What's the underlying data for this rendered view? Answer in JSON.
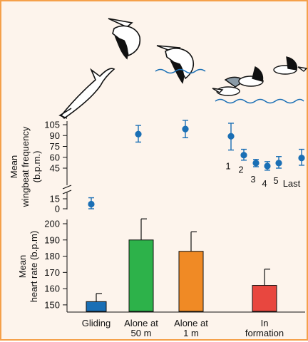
{
  "chart_data": [
    {
      "type": "scatter",
      "ylabel_line1": "Mean",
      "ylabel_line2": "wingbeat frequency",
      "ylabel_line3": "(b.p.m.)",
      "y_ticks": [
        0,
        15,
        45,
        60,
        75,
        90,
        105
      ],
      "axis_break_between": [
        15,
        45
      ],
      "ylim": [
        -5,
        110
      ],
      "points": [
        {
          "value": 7,
          "err_low": 0,
          "err_high": 16,
          "label": ""
        },
        {
          "value": 92,
          "err_low": 81,
          "err_high": 104,
          "label": ""
        },
        {
          "value": 99,
          "err_low": 87,
          "err_high": 111,
          "label": ""
        },
        {
          "value": 89,
          "err_low": 70,
          "err_high": 107,
          "label": "1"
        },
        {
          "value": 63,
          "err_low": 56,
          "err_high": 71,
          "label": "2"
        },
        {
          "value": 52,
          "err_low": 47,
          "err_high": 57,
          "label": "3"
        },
        {
          "value": 48,
          "err_low": 43,
          "err_high": 54,
          "label": "4"
        },
        {
          "value": 52,
          "err_low": 45,
          "err_high": 61,
          "label": "5"
        },
        {
          "value": 59,
          "err_low": 49,
          "err_high": 71,
          "label": "Last"
        }
      ],
      "marker_color": "#1a6fb5",
      "grid": false
    },
    {
      "type": "bar",
      "ylabel_line1": "Mean",
      "ylabel_line2": "heart rate (b.p.m)",
      "y_ticks": [
        150,
        160,
        170,
        180,
        190,
        200
      ],
      "ylim": [
        146,
        205
      ],
      "categories": [
        {
          "line1": "Gliding",
          "line2": ""
        },
        {
          "line1": "Alone at",
          "line2": "50 m"
        },
        {
          "line1": "Alone at",
          "line2": "1 m"
        },
        {
          "line1": "In",
          "line2": "formation"
        }
      ],
      "values": [
        152,
        190,
        183,
        162
      ],
      "errors": [
        157,
        203,
        195,
        172
      ],
      "colors": [
        "#1a6fb5",
        "#2db24a",
        "#f08a25",
        "#e8473f"
      ],
      "grid": false
    }
  ]
}
